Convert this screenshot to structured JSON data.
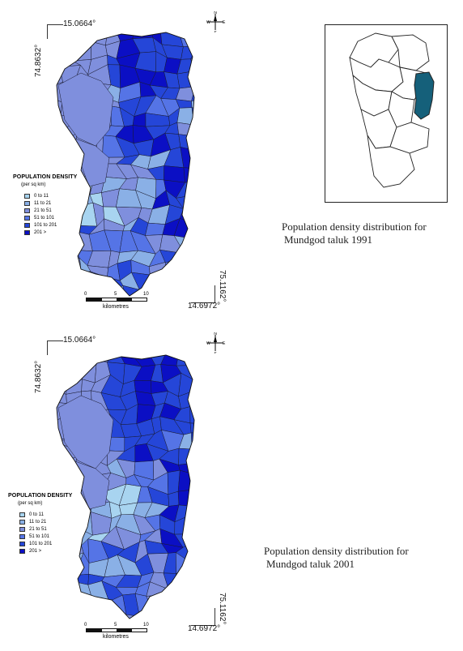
{
  "maps": [
    {
      "year_caption": [
        "Population density distribution for",
        "Mundgod taluk 1991"
      ],
      "coord_top": "15.0664°",
      "coord_left": "74.8632°",
      "coord_right": "75.1162°",
      "coord_bottom": "14.6972°"
    },
    {
      "year_caption": [
        "Population density distribution for",
        "Mundgod taluk 2001"
      ],
      "coord_top": "15.0664°",
      "coord_left": "74.8632°",
      "coord_right": "75.1162°",
      "coord_bottom": "14.6972°"
    }
  ],
  "legend": {
    "title": "POPULATION DENSITY",
    "unit": "(per sq km)",
    "classes": [
      {
        "label": "0  to  11",
        "color": "#a8d4f0"
      },
      {
        "label": "11  to  21",
        "color": "#8ab0e6"
      },
      {
        "label": "21  to  51",
        "color": "#7f8fdd"
      },
      {
        "label": "51  to 101",
        "color": "#5574e6"
      },
      {
        "label": "101  to 201",
        "color": "#2546d8"
      },
      {
        "label": "201  >",
        "color": "#0b0fc4"
      }
    ]
  },
  "scale": {
    "ticks": [
      "0",
      "5",
      "10"
    ],
    "unit": "kilometres"
  },
  "north_arrow": {
    "n": "N",
    "s": "S",
    "e": "E",
    "w": "W"
  },
  "inset": {
    "highlight_color": "#15607a"
  }
}
